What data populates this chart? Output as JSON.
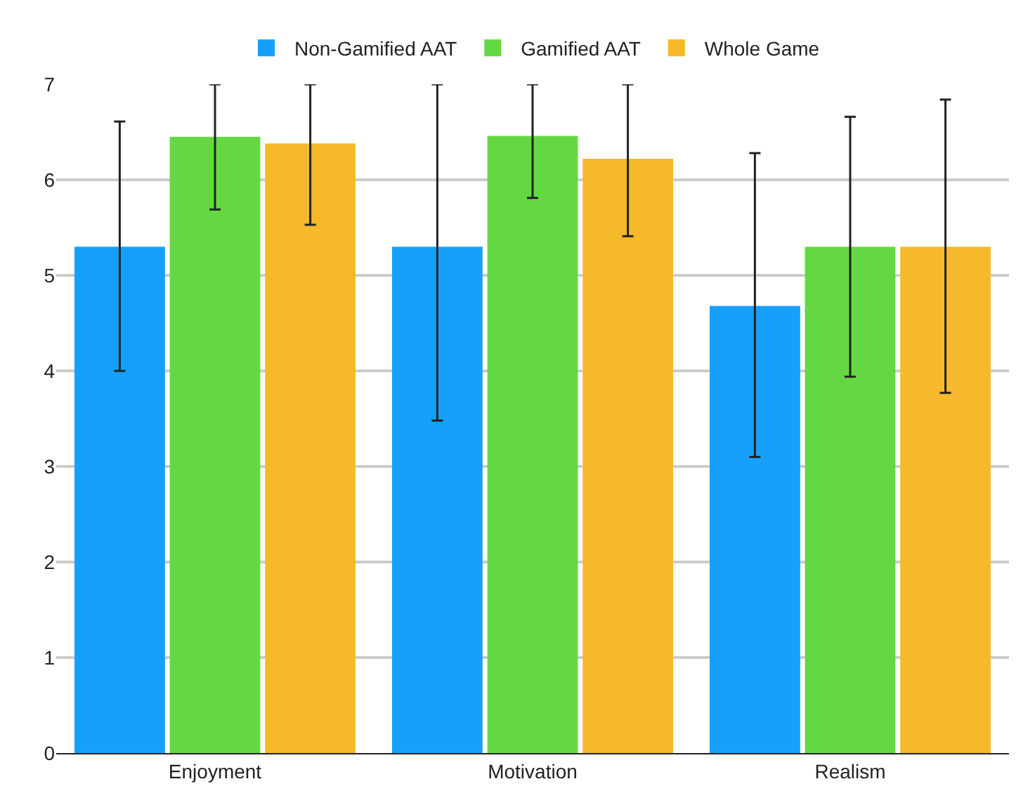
{
  "chart_data": {
    "type": "bar",
    "categories": [
      "Enjoyment",
      "Motivation",
      "Realism"
    ],
    "series": [
      {
        "name": "Non-Gamified AAT",
        "color": "#17a0fb",
        "values": [
          5.3,
          5.3,
          4.68
        ],
        "errors": [
          [
            4.0,
            6.61
          ],
          [
            3.48,
            7
          ],
          [
            3.1,
            6.28
          ]
        ]
      },
      {
        "name": "Gamified AAT",
        "color": "#64d842",
        "values": [
          6.45,
          6.46,
          5.3
        ],
        "errors": [
          [
            5.69,
            7
          ],
          [
            5.81,
            7
          ],
          [
            3.94,
            6.66
          ]
        ]
      },
      {
        "name": "Whole Game",
        "color": "#f6b92c",
        "values": [
          6.38,
          6.22,
          5.3
        ],
        "errors": [
          [
            5.53,
            7
          ],
          [
            5.41,
            7
          ],
          [
            3.77,
            6.84
          ]
        ]
      }
    ],
    "ylim": [
      0,
      7
    ],
    "yticks": [
      0,
      1,
      2,
      3,
      4,
      5,
      6,
      7
    ],
    "grid": "y",
    "legend": "top"
  }
}
